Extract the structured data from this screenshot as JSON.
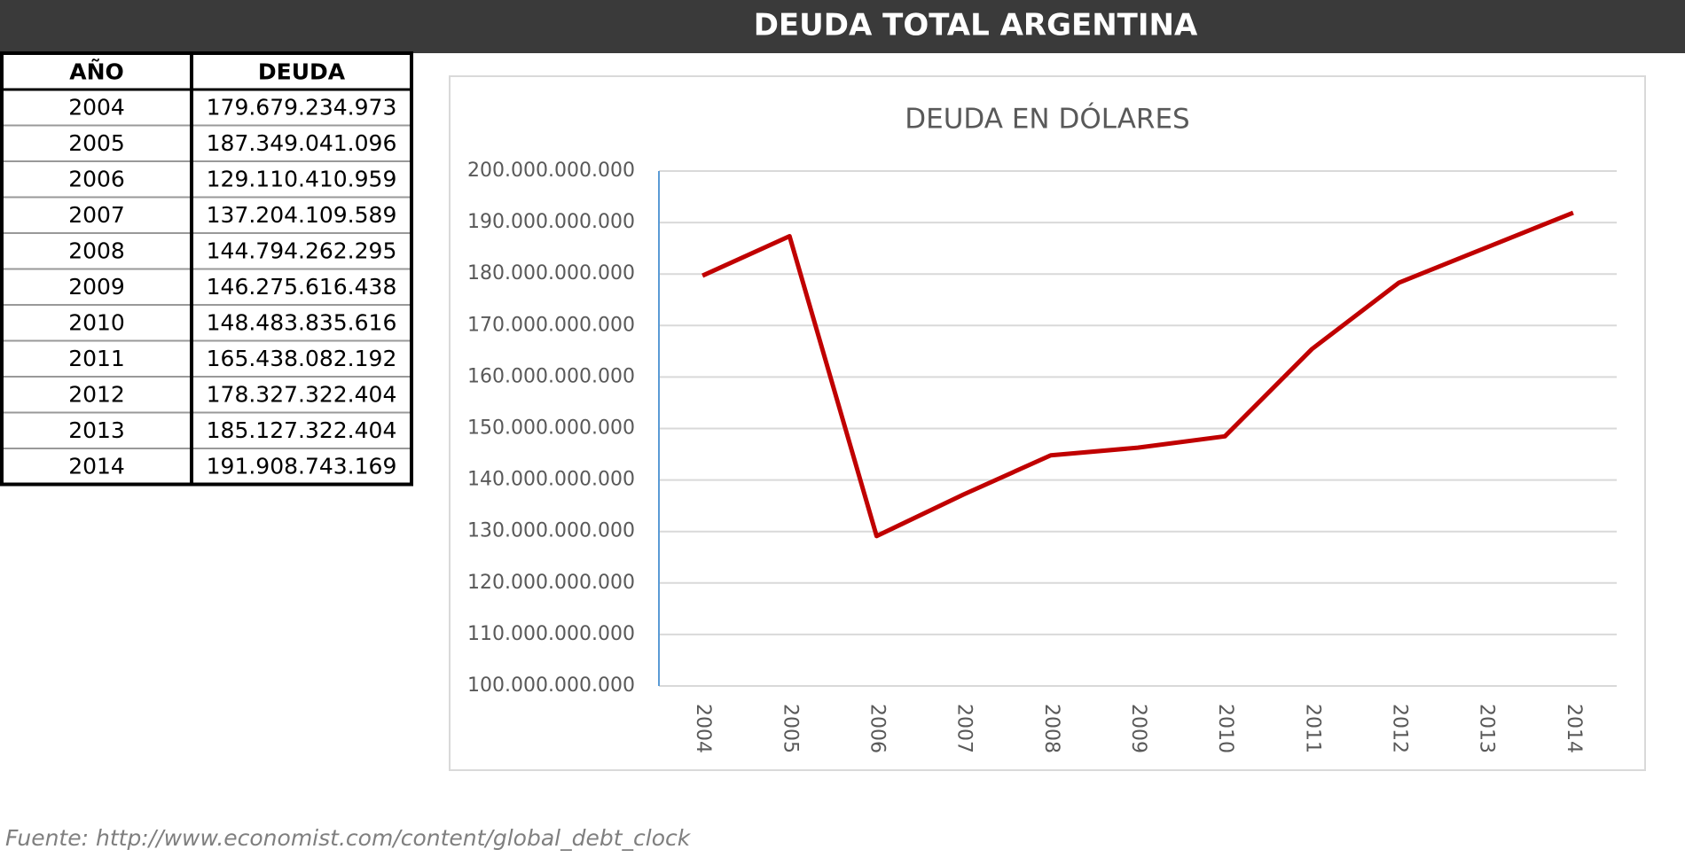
{
  "header": {
    "title": "DEUDA TOTAL ARGENTINA"
  },
  "table": {
    "columns": [
      "AÑO",
      "DEUDA"
    ],
    "rows": [
      [
        "2004",
        "179.679.234.973"
      ],
      [
        "2005",
        "187.349.041.096"
      ],
      [
        "2006",
        "129.110.410.959"
      ],
      [
        "2007",
        "137.204.109.589"
      ],
      [
        "2008",
        "144.794.262.295"
      ],
      [
        "2009",
        "146.275.616.438"
      ],
      [
        "2010",
        "148.483.835.616"
      ],
      [
        "2011",
        "165.438.082.192"
      ],
      [
        "2012",
        "178.327.322.404"
      ],
      [
        "2013",
        "185.127.322.404"
      ],
      [
        "2014",
        "191.908.743.169"
      ]
    ]
  },
  "chart_data": {
    "type": "line",
    "title": "DEUDA EN DÓLARES",
    "categories": [
      "2004",
      "2005",
      "2006",
      "2007",
      "2008",
      "2009",
      "2010",
      "2011",
      "2012",
      "2013",
      "2014"
    ],
    "values": [
      179679234973,
      187349041096,
      129110410959,
      137204109589,
      144794262295,
      146275616438,
      148483835616,
      165438082192,
      178327322404,
      185127322404,
      191908743169
    ],
    "color": "#c00000",
    "ylim": [
      100000000000,
      200000000000
    ],
    "yticks": [
      {
        "value": 100000000000,
        "label": "100.000.000.000"
      },
      {
        "value": 110000000000,
        "label": "110.000.000.000"
      },
      {
        "value": 120000000000,
        "label": "120.000.000.000"
      },
      {
        "value": 130000000000,
        "label": "130.000.000.000"
      },
      {
        "value": 140000000000,
        "label": "140.000.000.000"
      },
      {
        "value": 150000000000,
        "label": "150.000.000.000"
      },
      {
        "value": 160000000000,
        "label": "160.000.000.000"
      },
      {
        "value": 170000000000,
        "label": "170.000.000.000"
      },
      {
        "value": 180000000000,
        "label": "180.000.000.000"
      },
      {
        "value": 190000000000,
        "label": "190.000.000.000"
      },
      {
        "value": 200000000000,
        "label": "200.000.000.000"
      }
    ],
    "grid": true
  },
  "footer": {
    "source": "Fuente: http://www.economist.com/content/global_debt_clock"
  }
}
